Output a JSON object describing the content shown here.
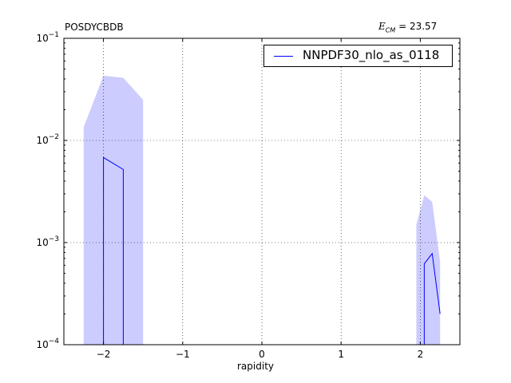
{
  "title_left": "POSDYCBDB",
  "title_right": {
    "symbol": "E",
    "subscript": "CM",
    "value": "= 23.57"
  },
  "legend": {
    "label": "NNPDF30_nlo_as_0118"
  },
  "chart_data": {
    "type": "line",
    "title": "POSDYCBDB",
    "xlabel": "rapidity",
    "ylabel": "",
    "xlim": [
      -2.5,
      2.5
    ],
    "ylim": [
      0.0001,
      0.1
    ],
    "yscale": "log",
    "grid": true,
    "legend_position": "top-right",
    "xticks": [
      -2,
      -1,
      0,
      1,
      2
    ],
    "xtick_labels": [
      "−2",
      "−1",
      "0",
      "1",
      "2"
    ],
    "yticks": [
      0.0001,
      0.001,
      0.01,
      0.1
    ],
    "ytick_labels": [
      {
        "base": "10",
        "exp": "−4"
      },
      {
        "base": "10",
        "exp": "−3"
      },
      {
        "base": "10",
        "exp": "−2"
      },
      {
        "base": "10",
        "exp": "−1"
      }
    ],
    "series": [
      {
        "name": "NNPDF30_nlo_as_0118",
        "color": "#0000ff",
        "band_color": "#ccccff",
        "segments": [
          {
            "x": [
              -2.0,
              -2.0,
              -1.75,
              -1.75
            ],
            "y": [
              0.0001,
              0.0068,
              0.0052,
              0.0001
            ]
          },
          {
            "x": [
              2.05,
              2.05,
              2.15,
              2.25
            ],
            "y": [
              0.0001,
              0.00062,
              0.00078,
              0.0002
            ]
          }
        ],
        "bands": [
          {
            "x": [
              -2.25,
              -2.0,
              -1.75,
              -1.5
            ],
            "upper": [
              0.0135,
              0.043,
              0.041,
              0.025
            ],
            "lower": [
              0.0001,
              0.0001,
              0.0001,
              0.0001
            ]
          },
          {
            "x": [
              1.95,
              2.05,
              2.15,
              2.25
            ],
            "upper": [
              0.0015,
              0.0029,
              0.0025,
              0.00065
            ],
            "lower": [
              0.0001,
              0.0001,
              0.0001,
              0.0001
            ]
          }
        ]
      }
    ]
  }
}
